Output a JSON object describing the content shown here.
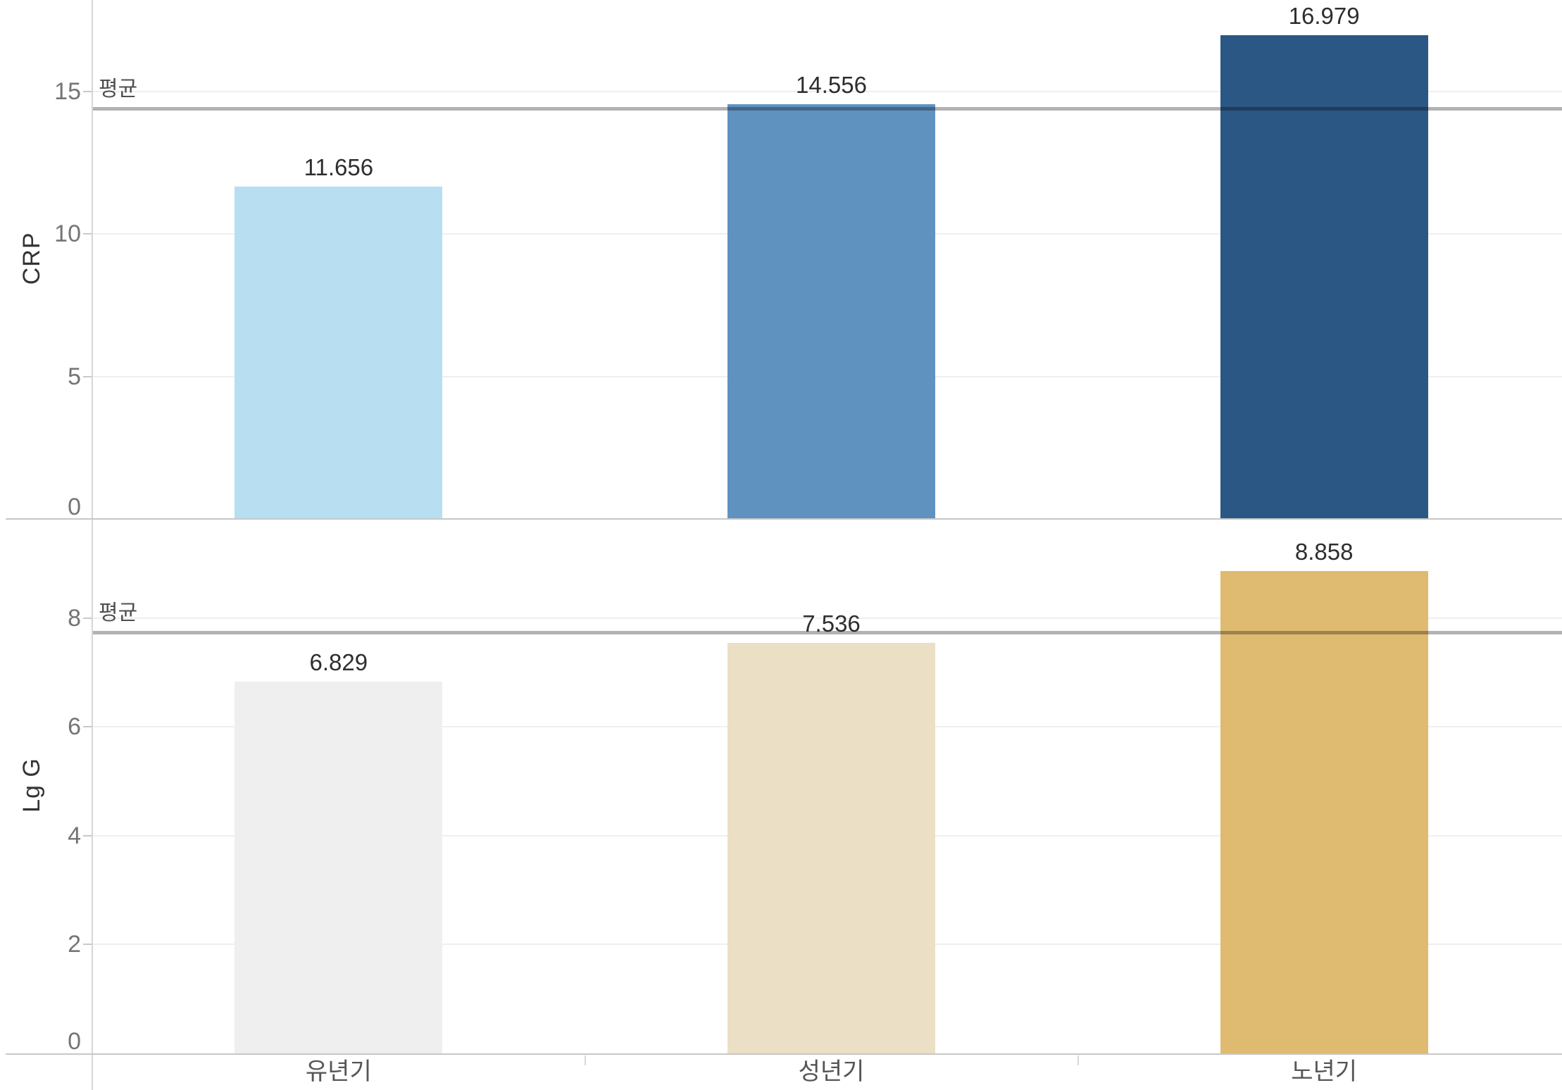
{
  "chart_data": [
    {
      "type": "bar",
      "panel": "top",
      "title": "",
      "xlabel": "",
      "ylabel": "CRP",
      "categories": [
        "유년기",
        "성년기",
        "노년기"
      ],
      "values": [
        11.656,
        14.556,
        16.979
      ],
      "value_labels": [
        "11.656",
        "14.556",
        "16.979"
      ],
      "bar_colors": [
        "#B8DEF1",
        "#6092C0",
        "#2B5784"
      ],
      "yticks": [
        0,
        5,
        10,
        15
      ],
      "ytick_labels": [
        "0",
        "5",
        "10",
        "15"
      ],
      "ylim": [
        0,
        18.2
      ],
      "grid": true,
      "legend": "none",
      "ref_line": {
        "label": "평균",
        "value": 14.397
      }
    },
    {
      "type": "bar",
      "panel": "bottom",
      "title": "",
      "xlabel": "",
      "ylabel": "Lg G",
      "categories": [
        "유년기",
        "성년기",
        "노년기"
      ],
      "values": [
        6.829,
        7.536,
        8.858
      ],
      "value_labels": [
        "6.829",
        "7.536",
        "8.858"
      ],
      "bar_colors": [
        "#EFEFEF",
        "#EBDFC5",
        "#DFBA71"
      ],
      "yticks": [
        0,
        2,
        4,
        6,
        8
      ],
      "ytick_labels": [
        "0",
        "2",
        "4",
        "6",
        "8"
      ],
      "ylim": [
        0,
        9.8
      ],
      "grid": true,
      "legend": "none",
      "ref_line": {
        "label": "평균",
        "value": 7.741
      }
    }
  ],
  "colors": {
    "grid": "#EFEFEF",
    "axis_line": "#D6D6D6",
    "row_divider": "#C7C7C7",
    "tick_mark": "#C9C9C9",
    "column_divider": "#D8D8D8",
    "ref_line": "rgba(0,0,0,0.30)",
    "tick_text": "#757575",
    "value_text": "#2E2E2E",
    "category_text": "#565656",
    "axis_title_text": "#333333",
    "ref_label_text": "#4F4F4F",
    "background": "#FFFFFF"
  }
}
